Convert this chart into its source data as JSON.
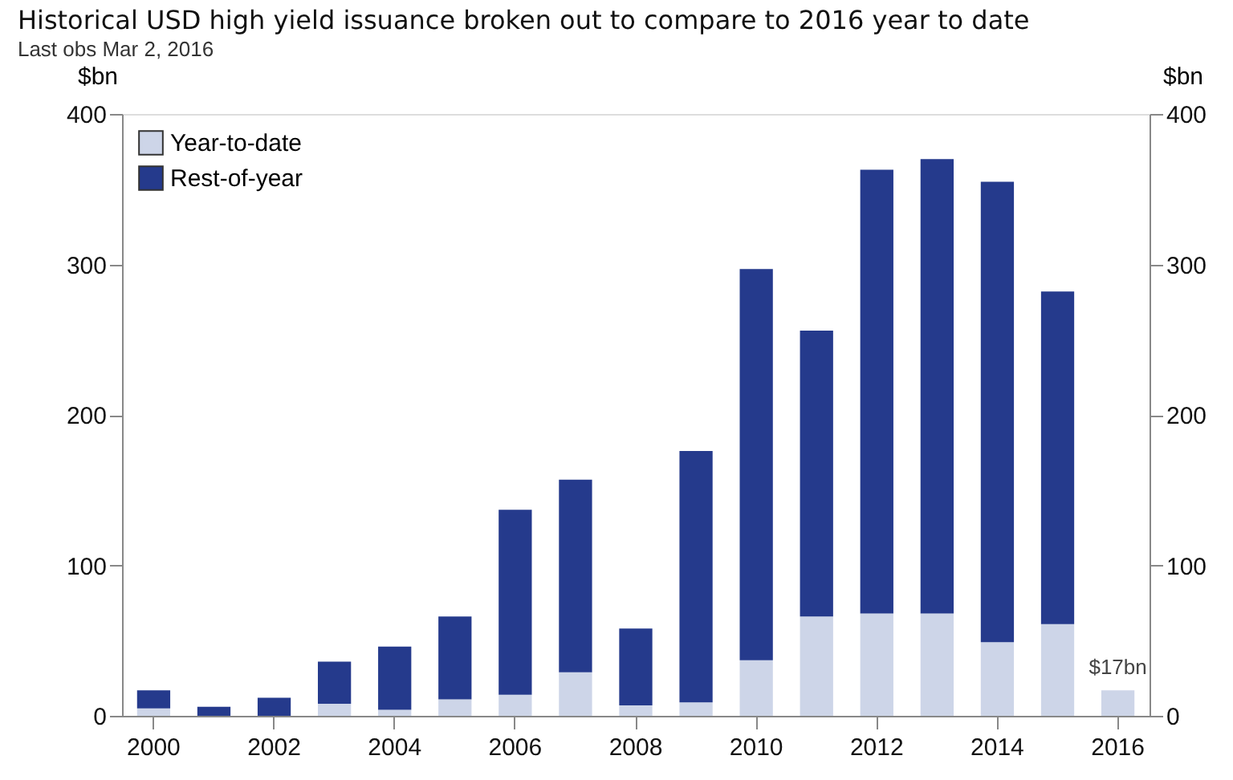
{
  "chart_data": {
    "type": "bar",
    "title": "Historical USD high yield issuance broken out to compare to 2016 year to date",
    "subtitle": "Last obs Mar 2, 2016",
    "ylabel": "$bn",
    "y2label": "$bn",
    "categories": [
      "2000",
      null,
      "2002",
      null,
      "2004",
      null,
      "2006",
      null,
      "2008",
      null,
      "2010",
      null,
      "2012",
      null,
      "2014",
      null,
      "2016"
    ],
    "stacked": true,
    "series": [
      {
        "name": "Year-to-date",
        "color": "#cdd5e8",
        "values": [
          5,
          null,
          null,
          8,
          4,
          11,
          14,
          29,
          7,
          9,
          37,
          66,
          68,
          68,
          49,
          61,
          17
        ]
      },
      {
        "name": "Rest-of-year",
        "color": "#253a8c",
        "values": [
          12,
          6,
          12,
          28,
          42,
          55,
          123,
          128,
          51,
          167,
          260,
          190,
          295,
          302,
          306,
          221,
          null
        ]
      }
    ],
    "ylim": [
      0,
      400
    ],
    "yticks": [
      0,
      100,
      200,
      300,
      400
    ],
    "y2lim": [
      0,
      400
    ],
    "y2ticks": [
      0,
      100,
      200,
      300,
      400
    ],
    "annotations": [
      {
        "text": "$17bn",
        "x": "2016",
        "y": 17
      }
    ],
    "legend": "top left",
    "grid": false
  }
}
